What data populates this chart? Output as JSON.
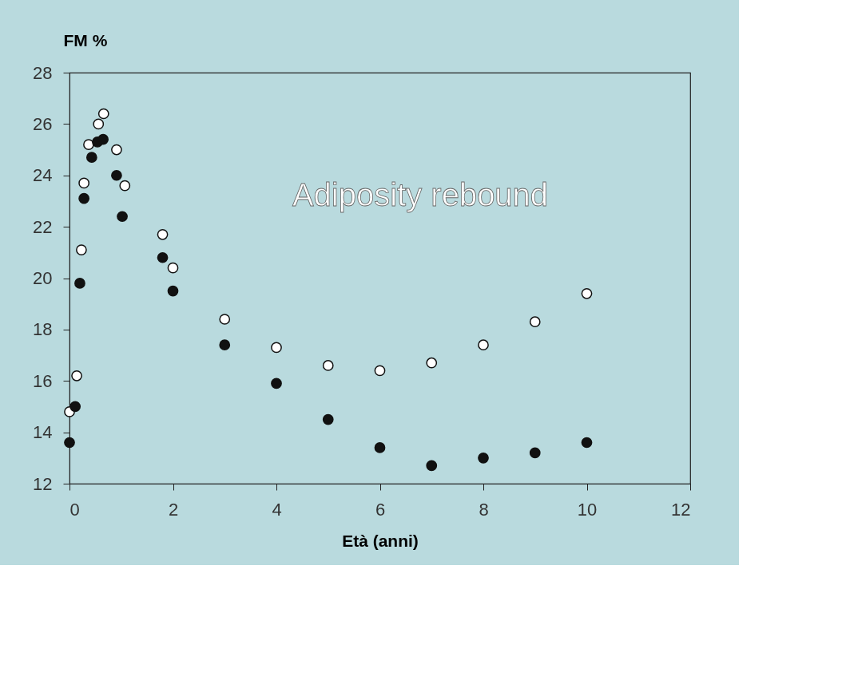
{
  "chart_data": {
    "type": "scatter",
    "xlabel": "Età (anni)",
    "ylabel": "FM %",
    "xlim": [
      0,
      12
    ],
    "ylim": [
      12,
      28
    ],
    "xticks": [
      0,
      2,
      4,
      6,
      8,
      10,
      12
    ],
    "yticks": [
      12,
      14,
      16,
      18,
      20,
      22,
      24,
      26,
      28
    ],
    "grid": false,
    "legend": false,
    "marker": "circle",
    "annotations": [
      "Adiposity rebound"
    ],
    "series": [
      {
        "color": "#ffffff",
        "x": [
          0,
          0.14,
          0.23,
          0.28,
          0.37,
          0.56,
          0.66,
          0.91,
          1.07,
          1.8,
          2,
          3,
          4,
          5,
          6,
          7,
          8,
          9,
          10
        ],
        "values": [
          14.8,
          16.2,
          21.1,
          23.7,
          25.2,
          26.0,
          26.4,
          25.0,
          23.6,
          21.7,
          20.4,
          18.4,
          17.3,
          16.6,
          16.4,
          16.7,
          17.4,
          18.3,
          19.4
        ]
      },
      {
        "color": "#111111",
        "x": [
          0,
          0.11,
          0.2,
          0.28,
          0.43,
          0.54,
          0.65,
          0.91,
          1.02,
          1.8,
          2,
          3,
          4,
          5,
          6,
          7,
          8,
          9,
          10
        ],
        "values": [
          13.6,
          15.0,
          19.8,
          23.1,
          24.7,
          25.3,
          25.4,
          24.0,
          22.4,
          20.8,
          19.5,
          17.4,
          15.9,
          14.5,
          13.4,
          12.7,
          13.0,
          13.2,
          13.6
        ]
      }
    ]
  }
}
